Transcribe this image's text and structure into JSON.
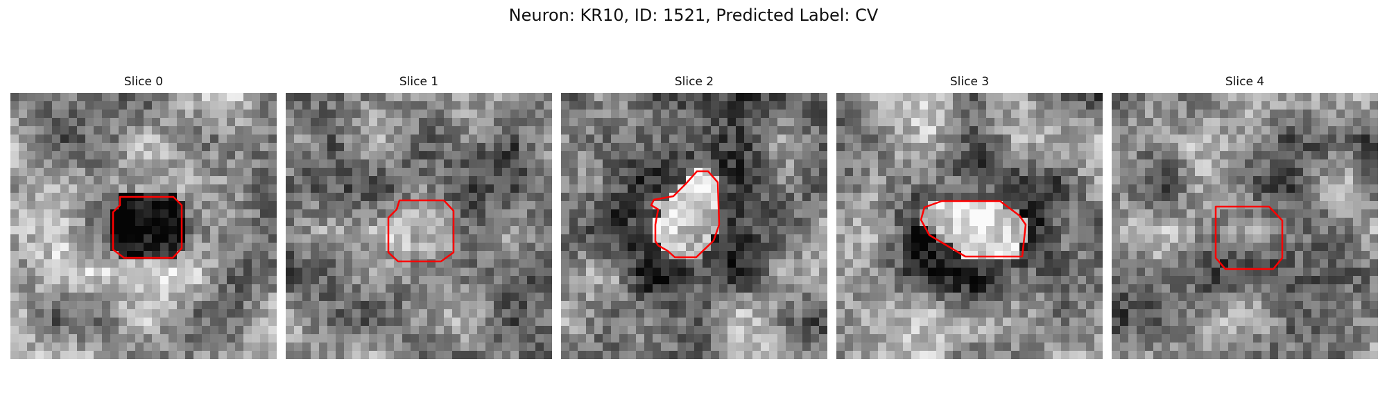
{
  "figure": {
    "title": "Neuron: KR10, ID: 1521, Predicted Label: CV",
    "outline_color": "#ff0000",
    "colormap": "grayscale",
    "panels": [
      {
        "title": "Slice 0"
      },
      {
        "title": "Slice 1"
      },
      {
        "title": "Slice 2"
      },
      {
        "title": "Slice 3"
      },
      {
        "title": "Slice 4"
      }
    ]
  }
}
